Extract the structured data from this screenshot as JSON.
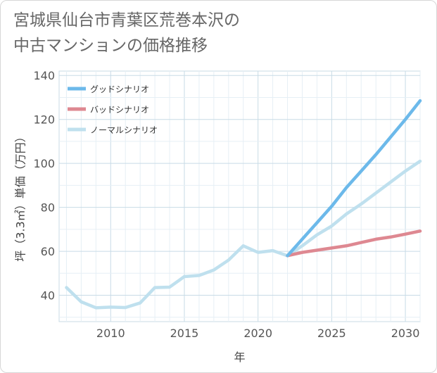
{
  "title_lines": [
    "宮城県仙台市青葉区荒巻本沢の",
    "中古マンションの価格推移"
  ],
  "chart_data": {
    "type": "line",
    "title": "宮城県仙台市青葉区荒巻本沢の中古マンションの価格推移",
    "xlabel": "年",
    "ylabel": "坪（3.3㎡）単価（万円）",
    "xlim": [
      2006.5,
      2031
    ],
    "ylim": [
      28,
      142
    ],
    "xticks": [
      2010,
      2015,
      2020,
      2025,
      2030
    ],
    "yticks": [
      40,
      60,
      80,
      100,
      120,
      140
    ],
    "grid": true,
    "legend_position": "top-left",
    "series": [
      {
        "name": "グッドシナリオ",
        "color": "#6cb9ea",
        "x": [
          2022,
          2023,
          2024,
          2025,
          2026,
          2027,
          2028,
          2029,
          2030,
          2031
        ],
        "y": [
          58,
          65.5,
          73,
          80.5,
          89,
          96.5,
          104,
          112,
          120,
          128.5
        ]
      },
      {
        "name": "バッドシナリオ",
        "color": "#de8891",
        "x": [
          2022,
          2023,
          2024,
          2025,
          2026,
          2027,
          2028,
          2029,
          2030,
          2031
        ],
        "y": [
          58,
          59.5,
          60.5,
          61.5,
          62.5,
          64,
          65.5,
          66.5,
          67.8,
          69.2
        ]
      },
      {
        "name": "ノーマルシナリオ",
        "color": "#bfe0ee",
        "x": [
          2007,
          2008,
          2009,
          2010,
          2011,
          2012,
          2013,
          2014,
          2015,
          2016,
          2017,
          2018,
          2019,
          2020,
          2021,
          2022,
          2023,
          2024,
          2025,
          2026,
          2027,
          2028,
          2029,
          2030,
          2031
        ],
        "y": [
          43.5,
          37,
          34.3,
          34.6,
          34.4,
          36.5,
          43.5,
          43.7,
          48.5,
          49,
          51.5,
          56,
          62.5,
          59.5,
          60.3,
          58,
          62.5,
          67.5,
          71.5,
          77,
          81.5,
          86.5,
          91.5,
          96.5,
          101
        ]
      }
    ]
  }
}
